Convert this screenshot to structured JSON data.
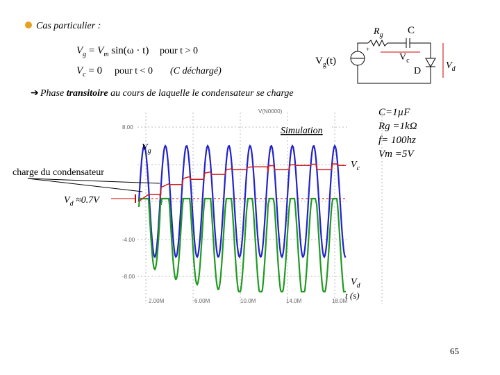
{
  "header": {
    "title": "Cas particulier :"
  },
  "equations": [
    {
      "lhs": "V",
      "lhs_sub": "g",
      "eq": " = ",
      "rhs_var": "V",
      "rhs_sub": "m",
      "rhs": " sin(ω · t)",
      "condition": "pour t > 0"
    },
    {
      "lhs": "V",
      "lhs_sub": "c",
      "rhs": " = 0",
      "condition": "pour t < 0",
      "note": "(C déchargé)"
    }
  ],
  "circuit": {
    "rg": {
      "main": "R",
      "sub": "g"
    },
    "c": "C",
    "vg": {
      "main": "V",
      "sub": "g",
      "suffix": "(t)"
    },
    "vc": {
      "main": "V",
      "sub": "c"
    },
    "d": "D",
    "vd": {
      "main": "V",
      "sub": "d"
    }
  },
  "phase": {
    "before": "Phase ",
    "bold": "transitoire",
    "after": " au cours de laquelle le condensateur se charge"
  },
  "plot": {
    "trace_name": "V(N0000)",
    "simulation": "Simulation",
    "vg": {
      "main": "V",
      "sub": "g"
    },
    "vc": {
      "main": "V",
      "sub": "c"
    },
    "vd": {
      "main": "V",
      "sub": "d"
    },
    "charge": "charge du condensateur",
    "vd_approx": {
      "main": "V",
      "sub": "d",
      "suffix": " ≈0.7V"
    },
    "time": "t (s)",
    "y_tick_labels": [
      "8.00",
      "-4.00",
      "-8.00"
    ],
    "x_tick_labels": [
      "2.00M",
      "6.00M",
      "10.0M",
      "14.0M",
      "18.0M"
    ]
  },
  "params": [
    "C=1µF",
    "Rg =1kΩ",
    "f= 100hz",
    "Vm =5V"
  ],
  "footer": {
    "page": "65"
  }
}
